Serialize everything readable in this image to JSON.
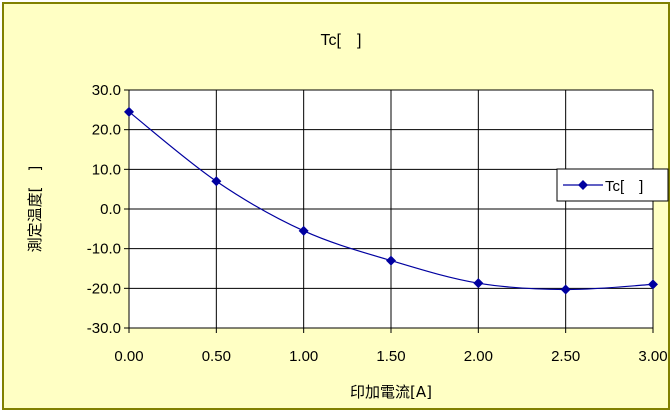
{
  "colors": {
    "page_background": "#ffffff",
    "chart_area_fill": "#ffffc4",
    "chart_area_border": "#808000",
    "plot_fill": "#ffffff",
    "grid": "#000000",
    "series": "#0000a0"
  },
  "chart_data": {
    "type": "line",
    "title": "Tc[　]",
    "xlabel": "印加電流[A]",
    "ylabel": "測定温度[　]",
    "x_ticks": [
      "0.00",
      "0.50",
      "1.00",
      "1.50",
      "2.00",
      "2.50",
      "3.00"
    ],
    "y_ticks": [
      "30.0",
      "20.0",
      "10.0",
      "0.0",
      "-10.0",
      "-20.0",
      "-30.0"
    ],
    "xlim": [
      0,
      3
    ],
    "ylim": [
      -30,
      30
    ],
    "grid": true,
    "smooth": true,
    "legend_position": "right",
    "series": [
      {
        "name": "Tc[　]",
        "marker": "diamond",
        "x": [
          0.0,
          0.5,
          1.0,
          1.5,
          2.0,
          2.5,
          3.0
        ],
        "y": [
          24.5,
          7.0,
          -5.5,
          -13.0,
          -18.7,
          -20.3,
          -19.0
        ]
      }
    ]
  }
}
